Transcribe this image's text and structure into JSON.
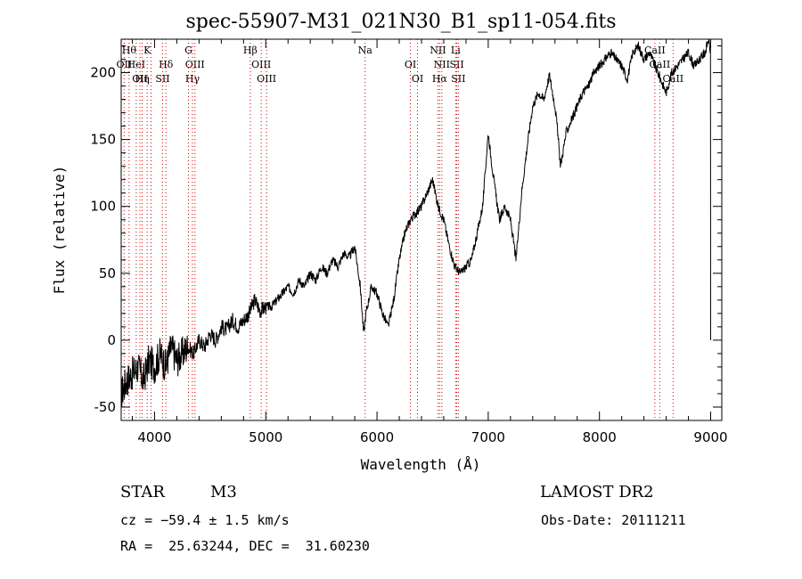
{
  "header": {
    "title": "spec-55907-M31_021N30_B1_sp11-054.fits"
  },
  "info": {
    "class": "STAR",
    "subclass": "M3",
    "survey": "LAMOST DR2",
    "cz": "cz = −59.4 ± 1.5 km/s",
    "obs_date": "Obs-Date: 20111211",
    "coords": "RA =  25.63244, DEC =  31.60230"
  },
  "chart_data": {
    "type": "line",
    "title": "spec-55907-M31_021N30_B1_sp11-054.fits",
    "xlabel": "Wavelength (Å)",
    "ylabel": "Flux (relative)",
    "xlim": [
      3700,
      9100
    ],
    "ylim": [
      -60,
      225
    ],
    "x_ticks": [
      4000,
      5000,
      6000,
      7000,
      8000,
      9000
    ],
    "y_ticks": [
      -50,
      0,
      50,
      100,
      150,
      200
    ],
    "grid": false,
    "line_color": "#000000",
    "marker_color": "#cc0000",
    "series": [
      {
        "x": [
          3700,
          3750,
          3800,
          3850,
          3900,
          3950,
          4000,
          4050,
          4100,
          4150,
          4200,
          4250,
          4300,
          4350,
          4400,
          4450,
          4500,
          4550,
          4600,
          4650,
          4700,
          4750,
          4800,
          4850,
          4900,
          4950,
          5000,
          5050,
          5100,
          5150,
          5200,
          5250,
          5300,
          5350,
          5400,
          5450,
          5500,
          5550,
          5600,
          5650,
          5700,
          5750,
          5800,
          5850,
          5880,
          5900,
          5950,
          6000,
          6050,
          6100,
          6150,
          6200,
          6250,
          6300,
          6350,
          6400,
          6450,
          6500,
          6550,
          6600,
          6650,
          6700,
          6750,
          6800,
          6850,
          6900,
          6950,
          7000,
          7020,
          7050,
          7100,
          7150,
          7200,
          7250,
          7300,
          7350,
          7400,
          7450,
          7500,
          7550,
          7600,
          7620,
          7650,
          7700,
          7750,
          7800,
          7850,
          7900,
          7950,
          8000,
          8050,
          8100,
          8150,
          8200,
          8250,
          8300,
          8350,
          8400,
          8450,
          8500,
          8550,
          8600,
          8650,
          8700,
          8750,
          8800,
          8850,
          8900,
          8950,
          8980,
          9000
        ],
        "y": [
          -40,
          -30,
          -25,
          -20,
          -30,
          -15,
          -20,
          -10,
          -20,
          -5,
          -15,
          -10,
          -5,
          -10,
          0,
          -5,
          5,
          0,
          10,
          8,
          15,
          10,
          15,
          20,
          30,
          22,
          25,
          25,
          30,
          35,
          40,
          35,
          45,
          40,
          50,
          45,
          55,
          50,
          60,
          55,
          65,
          62,
          70,
          40,
          5,
          20,
          40,
          35,
          20,
          10,
          30,
          60,
          80,
          90,
          95,
          100,
          110,
          120,
          100,
          90,
          70,
          55,
          50,
          55,
          60,
          80,
          100,
          155,
          140,
          120,
          90,
          100,
          90,
          60,
          110,
          145,
          175,
          185,
          180,
          198,
          175,
          160,
          130,
          155,
          165,
          175,
          185,
          190,
          200,
          205,
          210,
          215,
          210,
          205,
          195,
          215,
          220,
          210,
          215,
          205,
          195,
          185,
          200,
          205,
          210,
          215,
          205,
          210,
          215,
          225,
          215
        ]
      }
    ],
    "lines": [
      {
        "wave": 3771,
        "label": "Hθ",
        "row": 1
      },
      {
        "wave": 3727,
        "label": "OII",
        "row": 2
      },
      {
        "wave": 3835,
        "label": "HeI",
        "row": 2
      },
      {
        "wave": 3889,
        "label": "Hη",
        "row": 3
      },
      {
        "wave": 3869,
        "label": "OII",
        "row": 3
      },
      {
        "wave": 3934,
        "label": "K",
        "row": 1
      },
      {
        "wave": 3968,
        "label": "",
        "row": 0
      },
      {
        "wave": 4102,
        "label": "Hδ",
        "row": 2
      },
      {
        "wave": 4072,
        "label": "SII",
        "row": 3
      },
      {
        "wave": 4305,
        "label": "G",
        "row": 1
      },
      {
        "wave": 4363,
        "label": "OIII",
        "row": 2
      },
      {
        "wave": 4341,
        "label": "Hγ",
        "row": 3
      },
      {
        "wave": 4861,
        "label": "Hβ",
        "row": 1
      },
      {
        "wave": 4959,
        "label": "OIII",
        "row": 2
      },
      {
        "wave": 5007,
        "label": "OIII",
        "row": 3
      },
      {
        "wave": 5893,
        "label": "Na",
        "row": 1
      },
      {
        "wave": 6300,
        "label": "OI",
        "row": 2
      },
      {
        "wave": 6364,
        "label": "OI",
        "row": 3
      },
      {
        "wave": 6548,
        "label": "NII",
        "row": 1
      },
      {
        "wave": 6583,
        "label": "NII",
        "row": 2
      },
      {
        "wave": 6563,
        "label": "Hα",
        "row": 3
      },
      {
        "wave": 6707,
        "label": "Li",
        "row": 1
      },
      {
        "wave": 6717,
        "label": "SII",
        "row": 2
      },
      {
        "wave": 6731,
        "label": "SII",
        "row": 3
      },
      {
        "wave": 8498,
        "label": "CaII",
        "row": 1
      },
      {
        "wave": 8542,
        "label": "CaII",
        "row": 2
      },
      {
        "wave": 8662,
        "label": "CaII",
        "row": 3
      }
    ]
  }
}
